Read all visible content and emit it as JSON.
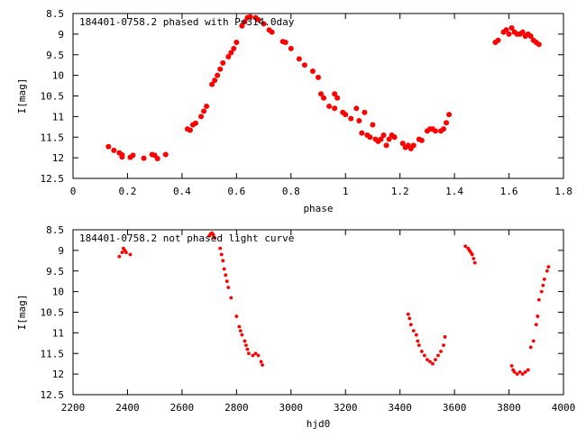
{
  "chart_data": [
    {
      "type": "scatter",
      "title": "184401-0758.2 phased with P=314.0day",
      "xlabel": "phase",
      "ylabel": "I[mag]",
      "xlim": [
        0,
        1.8
      ],
      "ylim": [
        12.5,
        8.5
      ],
      "y_inverted": true,
      "grid": false,
      "legend": "none",
      "x_ticks": [
        "0",
        "0.2",
        "0.4",
        "0.6",
        "0.8",
        "1",
        "1.2",
        "1.4",
        "1.6",
        "1.8"
      ],
      "y_ticks": [
        "8.5",
        "9",
        "9.5",
        "10",
        "10.5",
        "11",
        "11.5",
        "12",
        "12.5"
      ],
      "marker_color": "#ff0000",
      "series": [
        {
          "points": [
            [
              0.13,
              11.73
            ],
            [
              0.15,
              11.82
            ],
            [
              0.17,
              11.88
            ],
            [
              0.18,
              11.93
            ],
            [
              0.18,
              11.98
            ],
            [
              0.21,
              11.99
            ],
            [
              0.22,
              11.94
            ],
            [
              0.26,
              12.01
            ],
            [
              0.29,
              11.92
            ],
            [
              0.3,
              11.94
            ],
            [
              0.31,
              12.02
            ],
            [
              0.34,
              11.92
            ],
            [
              0.42,
              11.3
            ],
            [
              0.43,
              11.33
            ],
            [
              0.44,
              11.2
            ],
            [
              0.45,
              11.16
            ],
            [
              0.47,
              11.0
            ],
            [
              0.48,
              10.87
            ],
            [
              0.49,
              10.75
            ],
            [
              0.51,
              10.22
            ],
            [
              0.52,
              10.12
            ],
            [
              0.53,
              10.0
            ],
            [
              0.54,
              9.85
            ],
            [
              0.55,
              9.7
            ],
            [
              0.57,
              9.55
            ],
            [
              0.58,
              9.45
            ],
            [
              0.59,
              9.35
            ],
            [
              0.6,
              9.2
            ],
            [
              0.62,
              8.8
            ],
            [
              0.63,
              8.7
            ],
            [
              0.64,
              8.6
            ],
            [
              0.65,
              8.58
            ],
            [
              0.67,
              8.6
            ],
            [
              0.68,
              8.65
            ],
            [
              0.7,
              8.75
            ],
            [
              0.72,
              8.9
            ],
            [
              0.73,
              8.95
            ],
            [
              0.77,
              9.18
            ],
            [
              0.78,
              9.2
            ],
            [
              0.8,
              9.35
            ],
            [
              0.83,
              9.6
            ],
            [
              0.85,
              9.75
            ],
            [
              0.88,
              9.9
            ],
            [
              0.9,
              10.05
            ],
            [
              0.91,
              10.45
            ],
            [
              0.92,
              10.55
            ],
            [
              0.94,
              10.75
            ],
            [
              0.96,
              10.8
            ],
            [
              0.96,
              10.45
            ],
            [
              0.97,
              10.55
            ],
            [
              0.99,
              10.9
            ],
            [
              1.0,
              10.95
            ],
            [
              1.02,
              11.05
            ],
            [
              1.04,
              10.8
            ],
            [
              1.05,
              11.1
            ],
            [
              1.06,
              11.4
            ],
            [
              1.07,
              10.9
            ],
            [
              1.08,
              11.45
            ],
            [
              1.09,
              11.5
            ],
            [
              1.1,
              11.2
            ],
            [
              1.11,
              11.55
            ],
            [
              1.12,
              11.6
            ],
            [
              1.13,
              11.55
            ],
            [
              1.14,
              11.45
            ],
            [
              1.15,
              11.7
            ],
            [
              1.16,
              11.55
            ],
            [
              1.17,
              11.45
            ],
            [
              1.18,
              11.5
            ],
            [
              1.21,
              11.65
            ],
            [
              1.22,
              11.75
            ],
            [
              1.23,
              11.7
            ],
            [
              1.24,
              11.78
            ],
            [
              1.25,
              11.7
            ],
            [
              1.27,
              11.55
            ],
            [
              1.28,
              11.58
            ],
            [
              1.3,
              11.35
            ],
            [
              1.31,
              11.3
            ],
            [
              1.32,
              11.3
            ],
            [
              1.33,
              11.35
            ],
            [
              1.35,
              11.35
            ],
            [
              1.36,
              11.3
            ],
            [
              1.37,
              11.15
            ],
            [
              1.38,
              10.95
            ],
            [
              1.55,
              9.2
            ],
            [
              1.56,
              9.15
            ],
            [
              1.58,
              8.95
            ],
            [
              1.59,
              8.9
            ],
            [
              1.6,
              9.0
            ],
            [
              1.61,
              8.85
            ],
            [
              1.62,
              8.95
            ],
            [
              1.63,
              9.0
            ],
            [
              1.64,
              9.0
            ],
            [
              1.65,
              8.95
            ],
            [
              1.66,
              9.05
            ],
            [
              1.67,
              9.0
            ],
            [
              1.68,
              9.05
            ],
            [
              1.69,
              9.15
            ],
            [
              1.7,
              9.2
            ],
            [
              1.71,
              9.25
            ]
          ]
        }
      ]
    },
    {
      "type": "scatter",
      "title": "184401-0758.2 not phased light curve",
      "xlabel": "hjd0",
      "ylabel": "I[mag]",
      "xlim": [
        2200,
        4000
      ],
      "ylim": [
        12.5,
        8.5
      ],
      "y_inverted": true,
      "grid": false,
      "legend": "none",
      "x_ticks": [
        "2200",
        "2400",
        "2600",
        "2800",
        "3000",
        "3200",
        "3400",
        "3600",
        "3800",
        "4000"
      ],
      "y_ticks": [
        "8.5",
        "9",
        "9.5",
        "10",
        "10.5",
        "11",
        "11.5",
        "12",
        "12.5"
      ],
      "marker_color": "#ff0000",
      "series": [
        {
          "points": [
            [
              2370,
              9.15
            ],
            [
              2380,
              9.05
            ],
            [
              2385,
              8.95
            ],
            [
              2390,
              9.0
            ],
            [
              2395,
              9.05
            ],
            [
              2410,
              9.1
            ],
            [
              2700,
              8.65
            ],
            [
              2705,
              8.6
            ],
            [
              2710,
              8.58
            ],
            [
              2715,
              8.62
            ],
            [
              2720,
              8.7
            ],
            [
              2740,
              8.95
            ],
            [
              2745,
              9.1
            ],
            [
              2750,
              9.25
            ],
            [
              2755,
              9.45
            ],
            [
              2760,
              9.6
            ],
            [
              2765,
              9.75
            ],
            [
              2770,
              9.9
            ],
            [
              2780,
              10.15
            ],
            [
              2800,
              10.6
            ],
            [
              2810,
              10.85
            ],
            [
              2815,
              10.95
            ],
            [
              2820,
              11.05
            ],
            [
              2830,
              11.2
            ],
            [
              2835,
              11.3
            ],
            [
              2840,
              11.4
            ],
            [
              2845,
              11.5
            ],
            [
              2860,
              11.55
            ],
            [
              2870,
              11.5
            ],
            [
              2880,
              11.55
            ],
            [
              2890,
              11.7
            ],
            [
              2895,
              11.78
            ],
            [
              3430,
              10.55
            ],
            [
              3435,
              10.65
            ],
            [
              3440,
              10.8
            ],
            [
              3450,
              10.95
            ],
            [
              3460,
              11.05
            ],
            [
              3465,
              11.2
            ],
            [
              3470,
              11.3
            ],
            [
              3480,
              11.45
            ],
            [
              3490,
              11.55
            ],
            [
              3500,
              11.65
            ],
            [
              3510,
              11.7
            ],
            [
              3520,
              11.75
            ],
            [
              3530,
              11.65
            ],
            [
              3540,
              11.55
            ],
            [
              3550,
              11.45
            ],
            [
              3560,
              11.3
            ],
            [
              3565,
              11.1
            ],
            [
              3640,
              8.9
            ],
            [
              3650,
              8.95
            ],
            [
              3655,
              9.0
            ],
            [
              3660,
              9.05
            ],
            [
              3665,
              9.1
            ],
            [
              3670,
              9.2
            ],
            [
              3675,
              9.3
            ],
            [
              3810,
              11.8
            ],
            [
              3815,
              11.9
            ],
            [
              3820,
              11.95
            ],
            [
              3830,
              12.0
            ],
            [
              3840,
              11.95
            ],
            [
              3850,
              12.0
            ],
            [
              3860,
              11.95
            ],
            [
              3870,
              11.9
            ],
            [
              3880,
              11.35
            ],
            [
              3890,
              11.2
            ],
            [
              3900,
              10.8
            ],
            [
              3905,
              10.6
            ],
            [
              3910,
              10.2
            ],
            [
              3920,
              10.0
            ],
            [
              3925,
              9.85
            ],
            [
              3930,
              9.7
            ],
            [
              3940,
              9.5
            ],
            [
              3945,
              9.4
            ]
          ]
        }
      ]
    }
  ]
}
